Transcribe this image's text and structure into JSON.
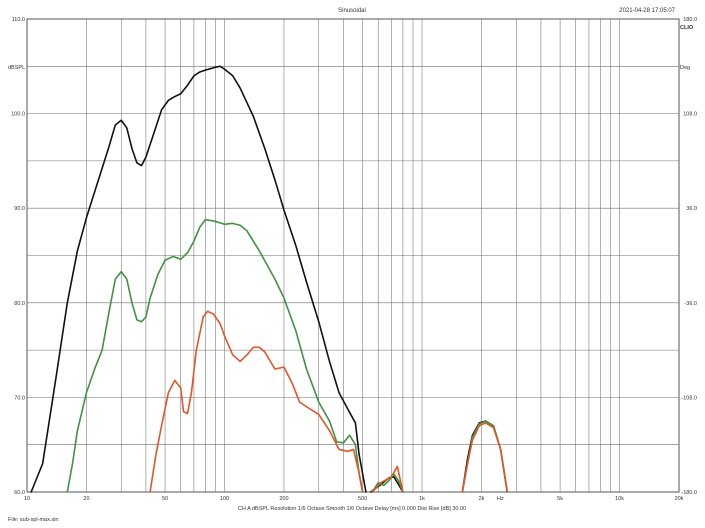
{
  "header": {
    "title": "Sinusoidal",
    "timestamp": "2021-04-28 17:05:07",
    "logo": "CLIO"
  },
  "footer": {
    "status": "CH A   dBSPL   Resolution 1/6 Octave   Smooth 1/6 Octave   Delay [ms] 0.000   Dist Rise [dB] 30.00",
    "file": "File: sub-spl-max.sin"
  },
  "chart_data": {
    "type": "line",
    "x_scale": "log",
    "xlim": [
      10,
      20000
    ],
    "ylim": [
      60,
      110
    ],
    "ylabel": "dBSPL",
    "y2label": "Deg",
    "xunit": "Hz",
    "grid": true,
    "x_ticks": [
      {
        "value": 10,
        "label": "10"
      },
      {
        "value": 20,
        "label": "20"
      },
      {
        "value": 50,
        "label": "50"
      },
      {
        "value": 100,
        "label": "100"
      },
      {
        "value": 200,
        "label": "200"
      },
      {
        "value": 500,
        "label": "500"
      },
      {
        "value": 1000,
        "label": "1k"
      },
      {
        "value": 2000,
        "label": "2k"
      },
      {
        "value": 5000,
        "label": "5k"
      },
      {
        "value": 10000,
        "label": "10k"
      },
      {
        "value": 20000,
        "label": "20k"
      }
    ],
    "y_ticks": [
      {
        "value": 60,
        "label": "60.0"
      },
      {
        "value": 70,
        "label": "70.0"
      },
      {
        "value": 80,
        "label": "80.0"
      },
      {
        "value": 90,
        "label": "90.0"
      },
      {
        "value": 100,
        "label": "100.0"
      },
      {
        "value": 110,
        "label": "110.0"
      }
    ],
    "y2_ticks": [
      {
        "value": 110,
        "label": "180.0"
      },
      {
        "value": 100,
        "label": "108.0"
      },
      {
        "value": 90,
        "label": "36.0"
      },
      {
        "value": 80,
        "label": "-36.0"
      },
      {
        "value": 70,
        "label": "-108.0"
      },
      {
        "value": 60,
        "label": "-180.0"
      }
    ],
    "series": [
      {
        "color": "#111111",
        "segments": [
          [
            [
              10.5,
              60.0
            ],
            [
              12,
              63.0
            ],
            [
              14,
              72.0
            ],
            [
              16,
              80.0
            ],
            [
              18,
              85.5
            ],
            [
              20,
              89.0
            ],
            [
              23,
              93.0
            ],
            [
              26,
              96.5
            ],
            [
              28,
              98.8
            ],
            [
              30,
              99.3
            ],
            [
              32,
              98.5
            ],
            [
              34,
              96.3
            ],
            [
              36,
              94.8
            ],
            [
              38,
              94.5
            ],
            [
              40,
              95.4
            ],
            [
              44,
              98.0
            ],
            [
              48,
              100.4
            ],
            [
              52,
              101.4
            ],
            [
              56,
              101.8
            ],
            [
              60,
              102.1
            ],
            [
              65,
              103.0
            ],
            [
              70,
              104.0
            ],
            [
              75,
              104.4
            ],
            [
              80,
              104.6
            ],
            [
              90,
              104.9
            ],
            [
              95,
              105.0
            ],
            [
              100,
              104.7
            ],
            [
              110,
              104.0
            ],
            [
              120,
              102.7
            ],
            [
              140,
              99.7
            ],
            [
              160,
              96.3
            ],
            [
              180,
              93.0
            ],
            [
              200,
              89.8
            ],
            [
              230,
              86.0
            ],
            [
              260,
              82.2
            ],
            [
              300,
              78.0
            ],
            [
              340,
              73.8
            ],
            [
              380,
              70.5
            ],
            [
              420,
              68.8
            ],
            [
              460,
              67.3
            ],
            [
              480,
              64.0
            ],
            [
              520,
              60.0
            ]
          ],
          [
            [
              550,
              60.0
            ],
            [
              620,
              60.8
            ],
            [
              680,
              61.5
            ],
            [
              720,
              61.6
            ],
            [
              760,
              60.8
            ],
            [
              800,
              60.0
            ]
          ],
          [
            [
              1600,
              60.0
            ],
            [
              1700,
              63.5
            ],
            [
              1800,
              66.0
            ],
            [
              1950,
              67.3
            ],
            [
              2100,
              67.5
            ],
            [
              2300,
              67.0
            ],
            [
              2500,
              64.5
            ],
            [
              2700,
              60.0
            ]
          ]
        ]
      },
      {
        "color": "#3e9441",
        "segments": [
          [
            [
              16,
              60.0
            ],
            [
              17,
              63.0
            ],
            [
              18,
              66.5
            ],
            [
              20,
              70.5
            ],
            [
              22,
              73.0
            ],
            [
              24,
              75.0
            ],
            [
              26,
              79.0
            ],
            [
              28,
              82.5
            ],
            [
              30,
              83.3
            ],
            [
              32,
              82.5
            ],
            [
              34,
              80.0
            ],
            [
              36,
              78.2
            ],
            [
              38,
              78.0
            ],
            [
              40,
              78.5
            ],
            [
              42,
              80.5
            ],
            [
              46,
              83.0
            ],
            [
              50,
              84.5
            ],
            [
              55,
              84.9
            ],
            [
              60,
              84.6
            ],
            [
              65,
              85.3
            ],
            [
              70,
              86.5
            ],
            [
              75,
              88.0
            ],
            [
              80,
              88.8
            ],
            [
              90,
              88.6
            ],
            [
              100,
              88.3
            ],
            [
              110,
              88.4
            ],
            [
              120,
              88.2
            ],
            [
              130,
              87.6
            ],
            [
              150,
              85.5
            ],
            [
              180,
              82.5
            ],
            [
              200,
              80.5
            ],
            [
              230,
              77.0
            ],
            [
              260,
              73.0
            ],
            [
              300,
              69.5
            ],
            [
              340,
              67.5
            ],
            [
              370,
              65.3
            ],
            [
              400,
              65.2
            ],
            [
              430,
              66.0
            ],
            [
              460,
              65.0
            ],
            [
              480,
              62.0
            ],
            [
              500,
              60.0
            ]
          ],
          [
            [
              560,
              60.0
            ],
            [
              600,
              61.0
            ],
            [
              640,
              60.7
            ],
            [
              680,
              61.2
            ],
            [
              720,
              61.9
            ],
            [
              760,
              61.2
            ],
            [
              800,
              60.0
            ]
          ],
          [
            [
              1600,
              60.0
            ],
            [
              1700,
              63.0
            ],
            [
              1800,
              65.8
            ],
            [
              1950,
              67.2
            ],
            [
              2100,
              67.5
            ],
            [
              2300,
              67.0
            ],
            [
              2500,
              64.5
            ],
            [
              2700,
              60.0
            ]
          ]
        ]
      },
      {
        "color": "#e35527",
        "segments": [
          [
            [
              42,
              60.0
            ],
            [
              45,
              64.0
            ],
            [
              48,
              67.0
            ],
            [
              52,
              70.5
            ],
            [
              56,
              71.8
            ],
            [
              60,
              71.0
            ],
            [
              62,
              68.5
            ],
            [
              65,
              68.3
            ],
            [
              68,
              70.5
            ],
            [
              72,
              75.0
            ],
            [
              78,
              78.5
            ],
            [
              82,
              79.1
            ],
            [
              88,
              78.8
            ],
            [
              95,
              77.8
            ],
            [
              100,
              76.5
            ],
            [
              110,
              74.5
            ],
            [
              120,
              73.8
            ],
            [
              130,
              74.5
            ],
            [
              140,
              75.3
            ],
            [
              150,
              75.3
            ],
            [
              160,
              74.8
            ],
            [
              180,
              73.0
            ],
            [
              200,
              73.2
            ],
            [
              220,
              71.5
            ],
            [
              240,
              69.5
            ],
            [
              270,
              68.8
            ],
            [
              300,
              68.2
            ],
            [
              340,
              66.5
            ],
            [
              380,
              64.5
            ],
            [
              420,
              64.3
            ],
            [
              450,
              64.5
            ],
            [
              480,
              62.0
            ],
            [
              500,
              60.0
            ]
          ],
          [
            [
              560,
              60.0
            ],
            [
              620,
              61.0
            ],
            [
              700,
              61.6
            ],
            [
              750,
              62.7
            ],
            [
              800,
              60.0
            ]
          ],
          [
            [
              1600,
              60.0
            ],
            [
              1700,
              63.0
            ],
            [
              1800,
              65.5
            ],
            [
              1950,
              67.0
            ],
            [
              2100,
              67.3
            ],
            [
              2300,
              66.8
            ],
            [
              2500,
              64.5
            ],
            [
              2700,
              60.0
            ]
          ]
        ]
      }
    ]
  }
}
